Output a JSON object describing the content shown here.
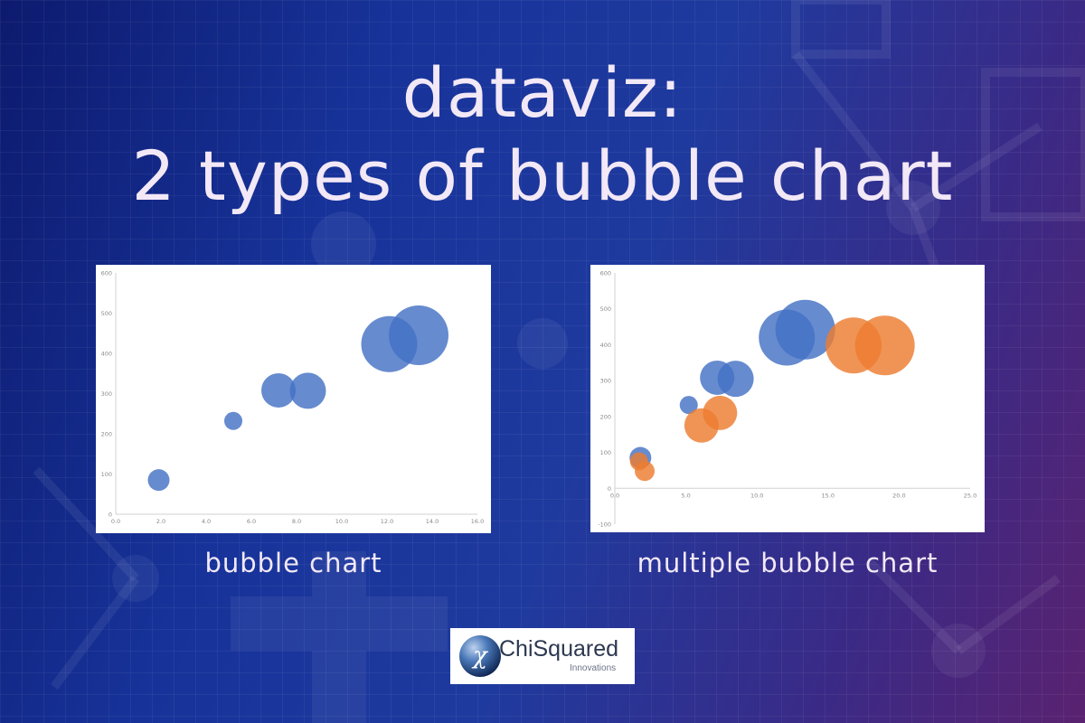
{
  "title": {
    "line1": "dataviz:",
    "line2": "2 types of bubble chart"
  },
  "captions": {
    "left": "bubble chart",
    "right": "multiple bubble chart"
  },
  "logo": {
    "name": "ChiSquared",
    "tagline": "Innovations",
    "emblem_glyph": "χ"
  },
  "colors": {
    "blue_series": "#4472c4",
    "orange_series": "#ed7d31",
    "title_text": "#f2e8f6"
  },
  "chart_data": [
    {
      "type": "scatter",
      "variant": "bubble",
      "title": "",
      "xlabel": "",
      "ylabel": "",
      "xlim": [
        0,
        16
      ],
      "ylim": [
        0,
        600
      ],
      "x_ticks": [
        "0.0",
        "2.0",
        "4.0",
        "6.0",
        "8.0",
        "10.0",
        "12.0",
        "14.0",
        "16.0"
      ],
      "y_ticks": [
        "0",
        "100",
        "200",
        "300",
        "400",
        "500",
        "600"
      ],
      "grid": false,
      "series": [
        {
          "color": "#4472c4",
          "points": [
            {
              "x": 1.9,
              "y": 85,
              "size": 1.2
            },
            {
              "x": 5.2,
              "y": 232,
              "size": 1.0
            },
            {
              "x": 7.2,
              "y": 308,
              "size": 1.9
            },
            {
              "x": 8.5,
              "y": 307,
              "size": 2.0
            },
            {
              "x": 12.1,
              "y": 423,
              "size": 3.1
            },
            {
              "x": 13.4,
              "y": 445,
              "size": 3.3
            }
          ]
        }
      ]
    },
    {
      "type": "scatter",
      "variant": "bubble",
      "title": "",
      "xlabel": "",
      "ylabel": "",
      "xlim": [
        0,
        25
      ],
      "ylim": [
        -100,
        600
      ],
      "x_ticks": [
        "0.0",
        "5.0",
        "10.0",
        "15.0",
        "20.0",
        "25.0"
      ],
      "y_ticks": [
        "-100",
        "0",
        "100",
        "200",
        "300",
        "400",
        "500",
        "600"
      ],
      "grid": false,
      "series": [
        {
          "color": "#4472c4",
          "points": [
            {
              "x": 1.8,
              "y": 85,
              "size": 1.2
            },
            {
              "x": 5.2,
              "y": 232,
              "size": 1.0
            },
            {
              "x": 7.2,
              "y": 308,
              "size": 1.9
            },
            {
              "x": 8.5,
              "y": 305,
              "size": 2.0
            },
            {
              "x": 12.1,
              "y": 420,
              "size": 3.1
            },
            {
              "x": 13.4,
              "y": 442,
              "size": 3.3
            }
          ]
        },
        {
          "color": "#ed7d31",
          "points": [
            {
              "x": 1.7,
              "y": 75,
              "size": 1.0
            },
            {
              "x": 2.1,
              "y": 48,
              "size": 1.1
            },
            {
              "x": 6.1,
              "y": 175,
              "size": 1.9
            },
            {
              "x": 7.4,
              "y": 210,
              "size": 1.9
            },
            {
              "x": 16.8,
              "y": 398,
              "size": 3.1
            },
            {
              "x": 19.0,
              "y": 398,
              "size": 3.3
            }
          ]
        }
      ]
    }
  ]
}
